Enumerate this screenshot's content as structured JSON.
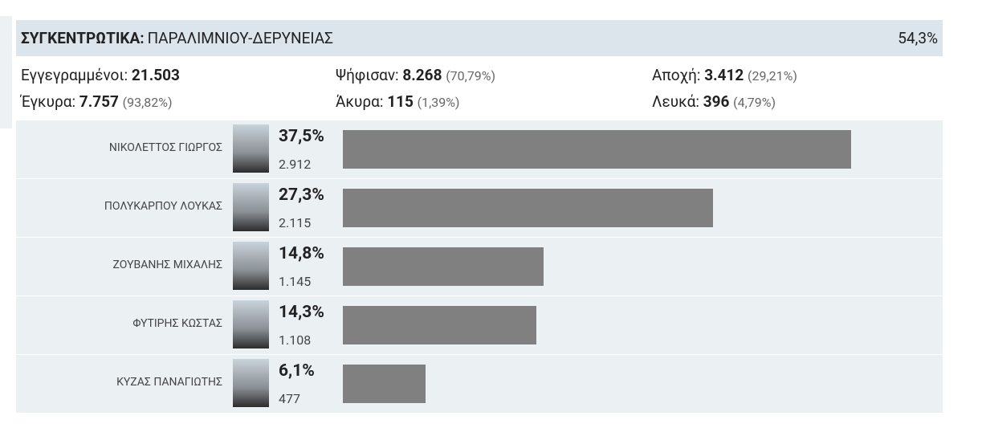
{
  "header": {
    "title_bold": "ΣΥΓΚΕΝΤΡΩΤΙΚΑ:",
    "title": "ΠΑΡΑΛΙΜΝΙΟΥ-ΔΕΡΥΝΕΙΑΣ",
    "counted": "54,3%"
  },
  "stats": [
    {
      "label": "Εγγεγραμμένοι:",
      "value": "21.503",
      "share": ""
    },
    {
      "label": "Ψήφισαν:",
      "value": "8.268",
      "share": "(70,79%)"
    },
    {
      "label": "Αποχή:",
      "value": "3.412",
      "share": "(29,21%)"
    },
    {
      "label": "Έγκυρα:",
      "value": "7.757",
      "share": "(93,82%)"
    },
    {
      "label": "Άκυρα:",
      "value": "115",
      "share": "(1,39%)"
    },
    {
      "label": "Λευκά:",
      "value": "396",
      "share": "(4,79%)"
    }
  ],
  "chart_data": {
    "type": "bar",
    "orientation": "horizontal",
    "color": "#808080",
    "categories": [
      "ΝΙΚΟΛΕΤΤΟΣ ΓΙΩΡΓΟΣ",
      "ΠΟΛΥΚΑΡΠΟΥ ΛΟΥΚΑΣ",
      "ΖΟΥΒΑΝΗΣ ΜΙΧΑΛΗΣ",
      "ΦΥΤΙΡΗΣ ΚΩΣΤΑΣ",
      "ΚΥΖΑΣ ΠΑΝΑΓΙΩΤΗΣ"
    ],
    "values": [
      37.5,
      27.3,
      14.8,
      14.3,
      6.1
    ],
    "value_labels": [
      "37,5%",
      "27,3%",
      "14,8%",
      "14,3%",
      "6,1%"
    ],
    "votes": [
      "2.912",
      "2.115",
      "1.145",
      "1.108",
      "477"
    ]
  }
}
